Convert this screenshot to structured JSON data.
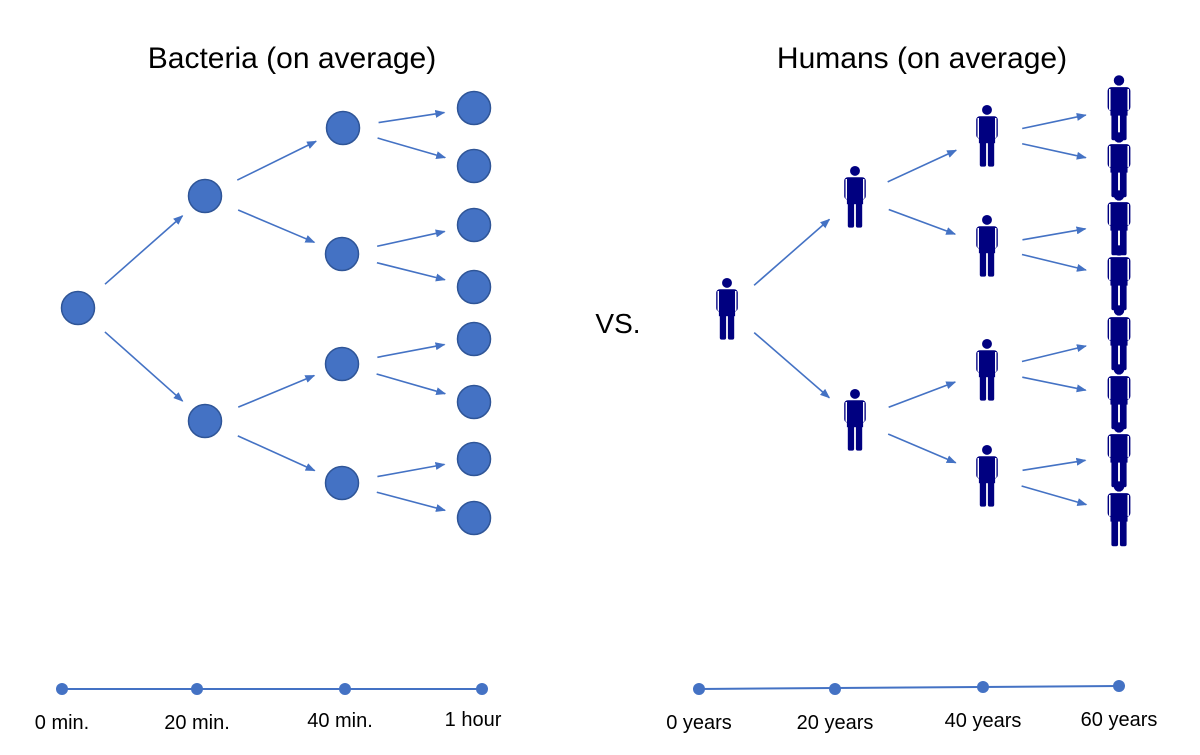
{
  "left_panel": {
    "title": "Bacteria (on average)",
    "timeline_labels": [
      "0 min.",
      "20 min.",
      "40 min.",
      "1 hour"
    ]
  },
  "separator": "VS.",
  "right_panel": {
    "title": "Humans (on average)",
    "timeline_labels": [
      "0 years",
      "20 years",
      "40 years",
      "60 years"
    ]
  },
  "colors": {
    "bacteria": "#4472C4",
    "bacteria_outline": "#2F5597",
    "human": "#000080",
    "arrow": "#4472C4",
    "text": "#000000"
  },
  "icons": {
    "bacterium": "bacterium-icon",
    "person": "person-icon"
  }
}
